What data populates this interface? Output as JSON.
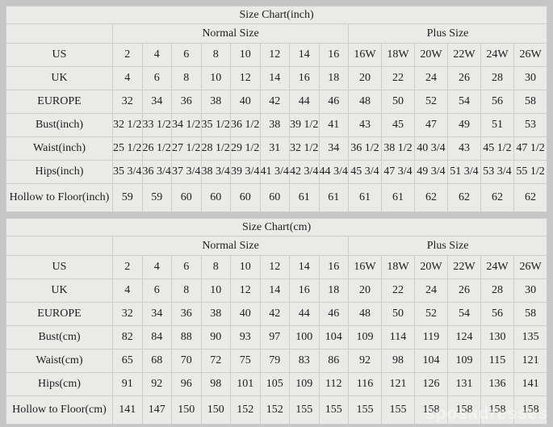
{
  "watermark": {
    "text": "sposadresses"
  },
  "colors": {
    "page_bg": "#c6c6c6",
    "cell_bg": "#eaeae8",
    "label_bg": "#f8f8f6",
    "header_bg": "#f0f0ee",
    "border": "#cccccb",
    "text": "#1e1e1e"
  },
  "tables": [
    {
      "title": "Size Chart(inch)",
      "groups": [
        {
          "label": "Normal Size",
          "span": 8
        },
        {
          "label": "Plus Size",
          "span": 6
        }
      ],
      "rows": [
        {
          "label": "US",
          "values": [
            "2",
            "4",
            "6",
            "8",
            "10",
            "12",
            "14",
            "16",
            "16W",
            "18W",
            "20W",
            "22W",
            "24W",
            "26W"
          ]
        },
        {
          "label": "UK",
          "values": [
            "4",
            "6",
            "8",
            "10",
            "12",
            "14",
            "16",
            "18",
            "20",
            "22",
            "24",
            "26",
            "28",
            "30"
          ]
        },
        {
          "label": "EUROPE",
          "values": [
            "32",
            "34",
            "36",
            "38",
            "40",
            "42",
            "44",
            "46",
            "48",
            "50",
            "52",
            "54",
            "56",
            "58"
          ]
        },
        {
          "label": "Bust(inch)",
          "values": [
            "32 1/2",
            "33 1/2",
            "34 1/2",
            "35 1/2",
            "36 1/2",
            "38",
            "39 1/2",
            "41",
            "43",
            "45",
            "47",
            "49",
            "51",
            "53"
          ]
        },
        {
          "label": "Waist(inch)",
          "values": [
            "25 1/2",
            "26 1/2",
            "27 1/2",
            "28 1/2",
            "29 1/2",
            "31",
            "32 1/2",
            "34",
            "36 1/2",
            "38 1/2",
            "40 3/4",
            "43",
            "45 1/2",
            "47 1/2"
          ]
        },
        {
          "label": "Hips(inch)",
          "values": [
            "35 3/4",
            "36 3/4",
            "37 3/4",
            "38 3/4",
            "39 3/4",
            "41 3/4",
            "42 3/4",
            "44 3/4",
            "45 3/4",
            "47 3/4",
            "49 3/4",
            "51 3/4",
            "53 3/4",
            "55 1/2"
          ]
        },
        {
          "label": "Hollow to Floor(inch)",
          "values": [
            "59",
            "59",
            "60",
            "60",
            "60",
            "60",
            "61",
            "61",
            "61",
            "61",
            "62",
            "62",
            "62",
            "62"
          ]
        }
      ]
    },
    {
      "title": "Size Chart(cm)",
      "groups": [
        {
          "label": "Normal Size",
          "span": 8
        },
        {
          "label": "Plus Size",
          "span": 6
        }
      ],
      "rows": [
        {
          "label": "US",
          "values": [
            "2",
            "4",
            "6",
            "8",
            "10",
            "12",
            "14",
            "16",
            "16W",
            "18W",
            "20W",
            "22W",
            "24W",
            "26W"
          ]
        },
        {
          "label": "UK",
          "values": [
            "4",
            "6",
            "8",
            "10",
            "12",
            "14",
            "16",
            "18",
            "20",
            "22",
            "24",
            "26",
            "28",
            "30"
          ]
        },
        {
          "label": "EUROPE",
          "values": [
            "32",
            "34",
            "36",
            "38",
            "40",
            "42",
            "44",
            "46",
            "48",
            "50",
            "52",
            "54",
            "56",
            "58"
          ]
        },
        {
          "label": "Bust(cm)",
          "values": [
            "82",
            "84",
            "88",
            "90",
            "93",
            "97",
            "100",
            "104",
            "109",
            "114",
            "119",
            "124",
            "130",
            "135"
          ]
        },
        {
          "label": "Waist(cm)",
          "values": [
            "65",
            "68",
            "70",
            "72",
            "75",
            "79",
            "83",
            "86",
            "92",
            "98",
            "104",
            "109",
            "115",
            "121"
          ]
        },
        {
          "label": "Hips(cm)",
          "values": [
            "91",
            "92",
            "96",
            "98",
            "101",
            "105",
            "109",
            "112",
            "116",
            "121",
            "126",
            "131",
            "136",
            "141"
          ]
        },
        {
          "label": "Hollow to Floor(cm)",
          "values": [
            "141",
            "147",
            "150",
            "150",
            "152",
            "152",
            "155",
            "155",
            "155",
            "155",
            "158",
            "158",
            "158",
            "158"
          ]
        }
      ]
    }
  ]
}
